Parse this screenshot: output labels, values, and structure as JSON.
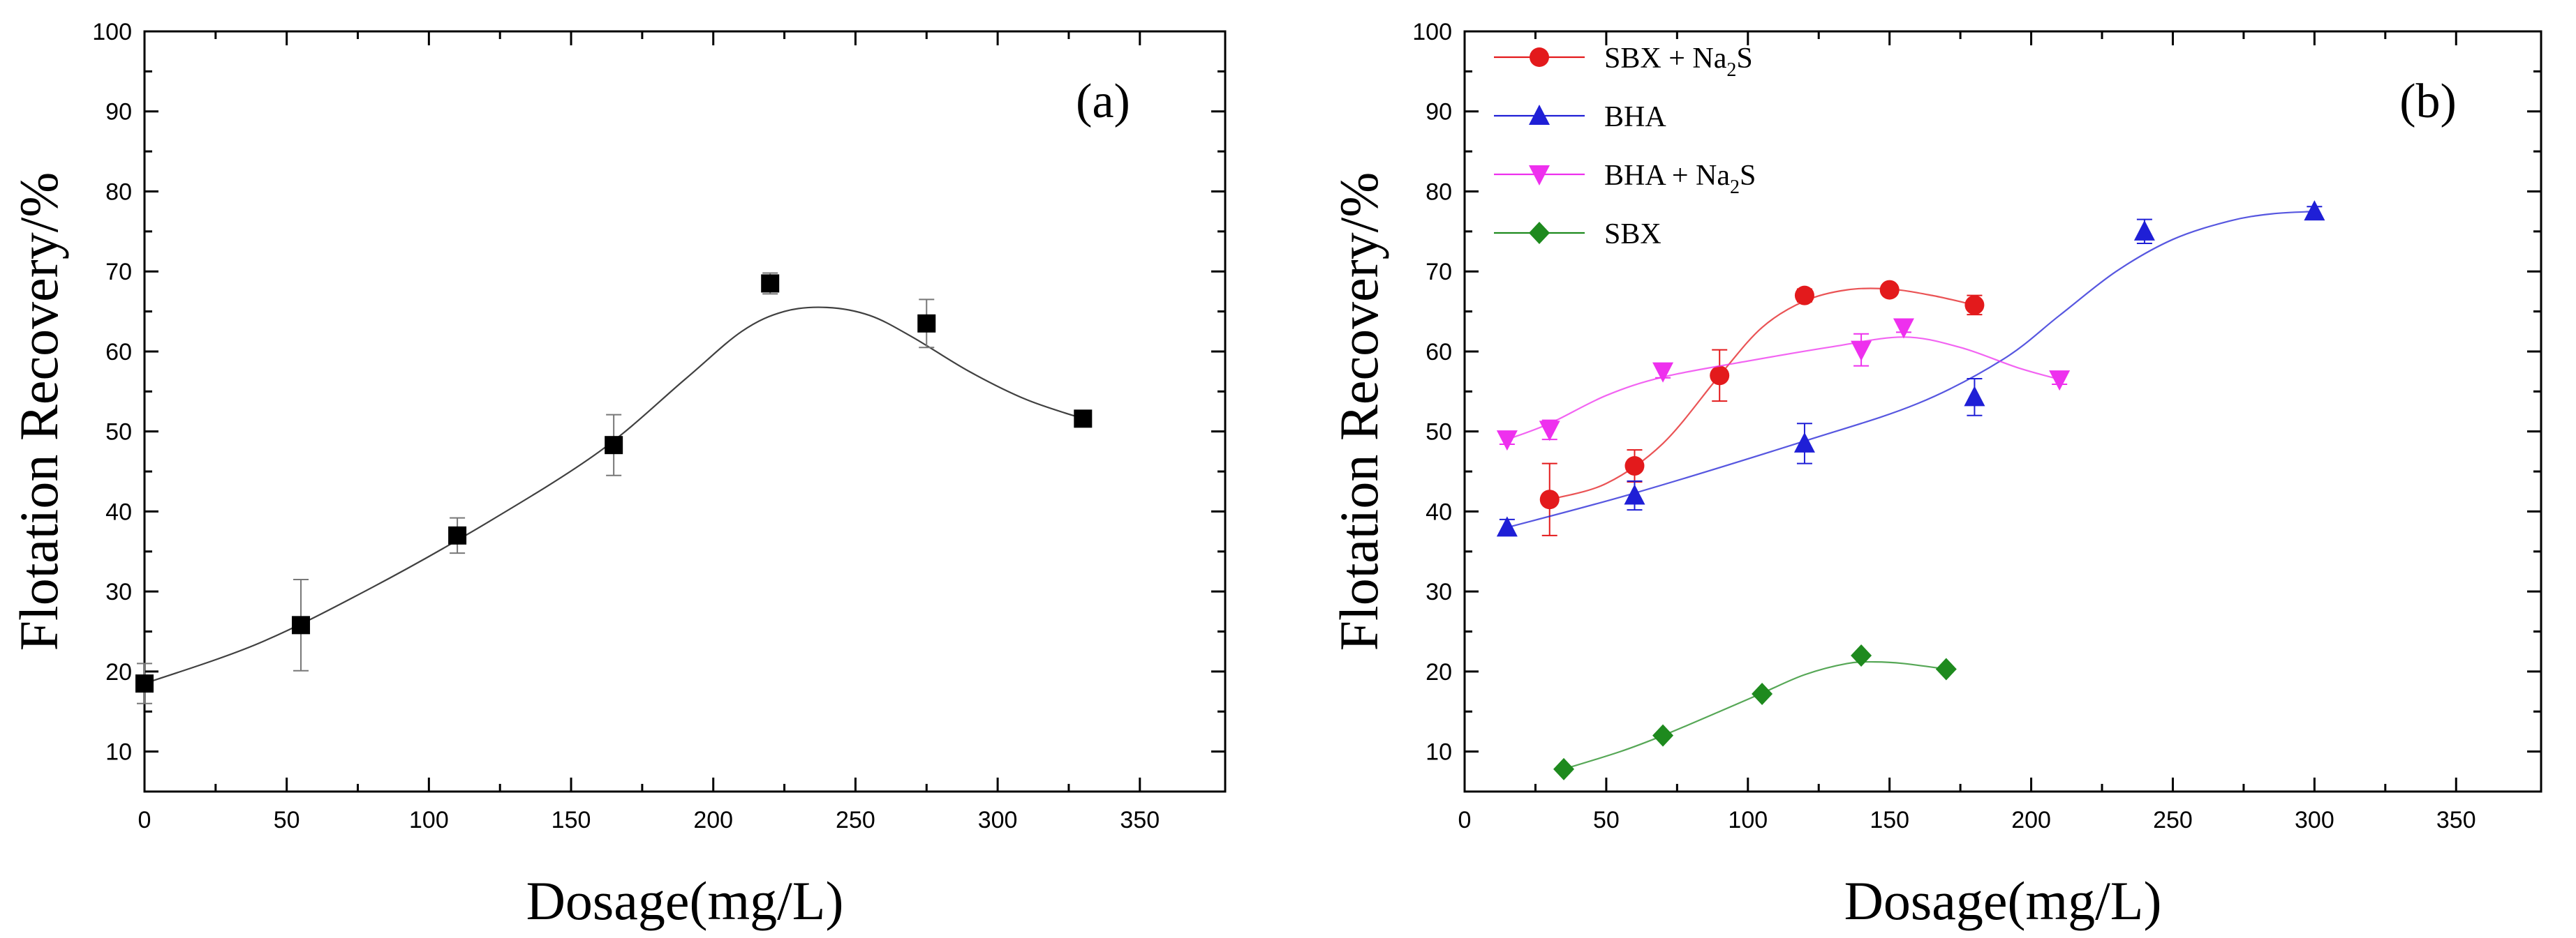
{
  "chart_data": [
    {
      "type": "scatter",
      "panel": "(a)",
      "xlabel": "Dosage(mg/L)",
      "ylabel": "Flotation Recovery/%",
      "xlim": [
        0,
        380
      ],
      "ylim": [
        5,
        100
      ],
      "xticks": [
        0,
        50,
        100,
        150,
        200,
        250,
        300,
        350
      ],
      "yticks": [
        10,
        20,
        30,
        40,
        50,
        60,
        70,
        80,
        90,
        100
      ],
      "grid": false,
      "series": [
        {
          "color": "#000000",
          "marker": "square",
          "x": [
            0,
            55,
            110,
            165,
            220,
            275,
            330
          ],
          "y": [
            18.5,
            25.8,
            37.0,
            48.3,
            68.5,
            63.5,
            51.6
          ],
          "err": [
            2.5,
            5.7,
            2.2,
            3.8,
            1.3,
            3.0,
            0.6
          ],
          "fit_x": [
            0,
            40,
            80,
            120,
            160,
            190,
            210,
            225,
            240,
            255,
            270,
            290,
            310,
            330
          ],
          "fit_y": [
            18.5,
            23.5,
            30.5,
            38.5,
            47.5,
            56.5,
            62.5,
            65.0,
            65.5,
            64.5,
            61.8,
            57.5,
            54.0,
            51.6
          ]
        }
      ]
    },
    {
      "type": "scatter",
      "panel": "(b)",
      "xlabel": "Dosage(mg/L)",
      "ylabel": "Flotation Recovery/%",
      "xlim": [
        0,
        380
      ],
      "ylim": [
        5,
        100
      ],
      "xticks": [
        0,
        50,
        100,
        150,
        200,
        250,
        300,
        350
      ],
      "yticks": [
        10,
        20,
        30,
        40,
        50,
        60,
        70,
        80,
        90,
        100
      ],
      "grid": false,
      "legend_position": "top-left",
      "series": [
        {
          "name": "SBX + Na",
          "name_sub": "2",
          "name_suffix": "S",
          "color": "#e31a1c",
          "marker": "circle",
          "x": [
            30,
            60,
            90,
            120,
            150,
            180
          ],
          "y": [
            41.5,
            45.7,
            57.0,
            67.0,
            67.7,
            65.8
          ],
          "err": [
            4.5,
            2.0,
            3.2,
            0.8,
            0.6,
            1.2
          ],
          "fit_x": [
            30,
            50,
            70,
            90,
            105,
            120,
            135,
            150,
            165,
            180
          ],
          "fit_y": [
            41.5,
            43.5,
            48.5,
            57.0,
            63.0,
            66.3,
            67.7,
            67.8,
            67.0,
            65.8
          ]
        },
        {
          "name": "BHA",
          "color": "#1f1fd6",
          "marker": "triangle-up",
          "x": [
            15,
            60,
            120,
            180,
            240,
            300
          ],
          "y": [
            38.0,
            42.0,
            48.5,
            54.3,
            75.0,
            77.5
          ],
          "err": [
            1.0,
            1.8,
            2.5,
            2.3,
            1.5,
            0.6
          ],
          "fit_x": [
            15,
            60,
            120,
            160,
            190,
            210,
            230,
            250,
            270,
            285,
            300
          ],
          "fit_y": [
            38.0,
            42.3,
            48.8,
            53.5,
            59.0,
            64.5,
            70.0,
            74.0,
            76.3,
            77.2,
            77.5
          ]
        },
        {
          "name": "BHA + Na",
          "name_sub": "2",
          "name_suffix": "S",
          "color": "#ee30ee",
          "marker": "triangle-down",
          "x": [
            15,
            30,
            70,
            140,
            155,
            210
          ],
          "y": [
            49.0,
            50.2,
            57.5,
            60.2,
            63.0,
            56.5
          ],
          "err": [
            0.6,
            1.2,
            0.8,
            2.0,
            0.6,
            0.6
          ],
          "fit_x": [
            15,
            30,
            50,
            70,
            100,
            130,
            155,
            175,
            195,
            210
          ],
          "fit_y": [
            49.0,
            51.0,
            54.5,
            56.8,
            58.8,
            60.6,
            61.8,
            60.5,
            58.0,
            56.5
          ]
        },
        {
          "name": "SBX",
          "color": "#1e8a1e",
          "marker": "diamond",
          "x": [
            35,
            70,
            105,
            140,
            170
          ],
          "y": [
            7.8,
            12.0,
            17.2,
            22.0,
            20.3
          ],
          "err": [
            0,
            0,
            0,
            0,
            0
          ],
          "fit_x": [
            35,
            55,
            70,
            90,
            105,
            120,
            135,
            145,
            155,
            170
          ],
          "fit_y": [
            7.8,
            10.0,
            12.0,
            15.0,
            17.3,
            19.6,
            21.0,
            21.2,
            21.0,
            20.3
          ]
        }
      ]
    }
  ]
}
